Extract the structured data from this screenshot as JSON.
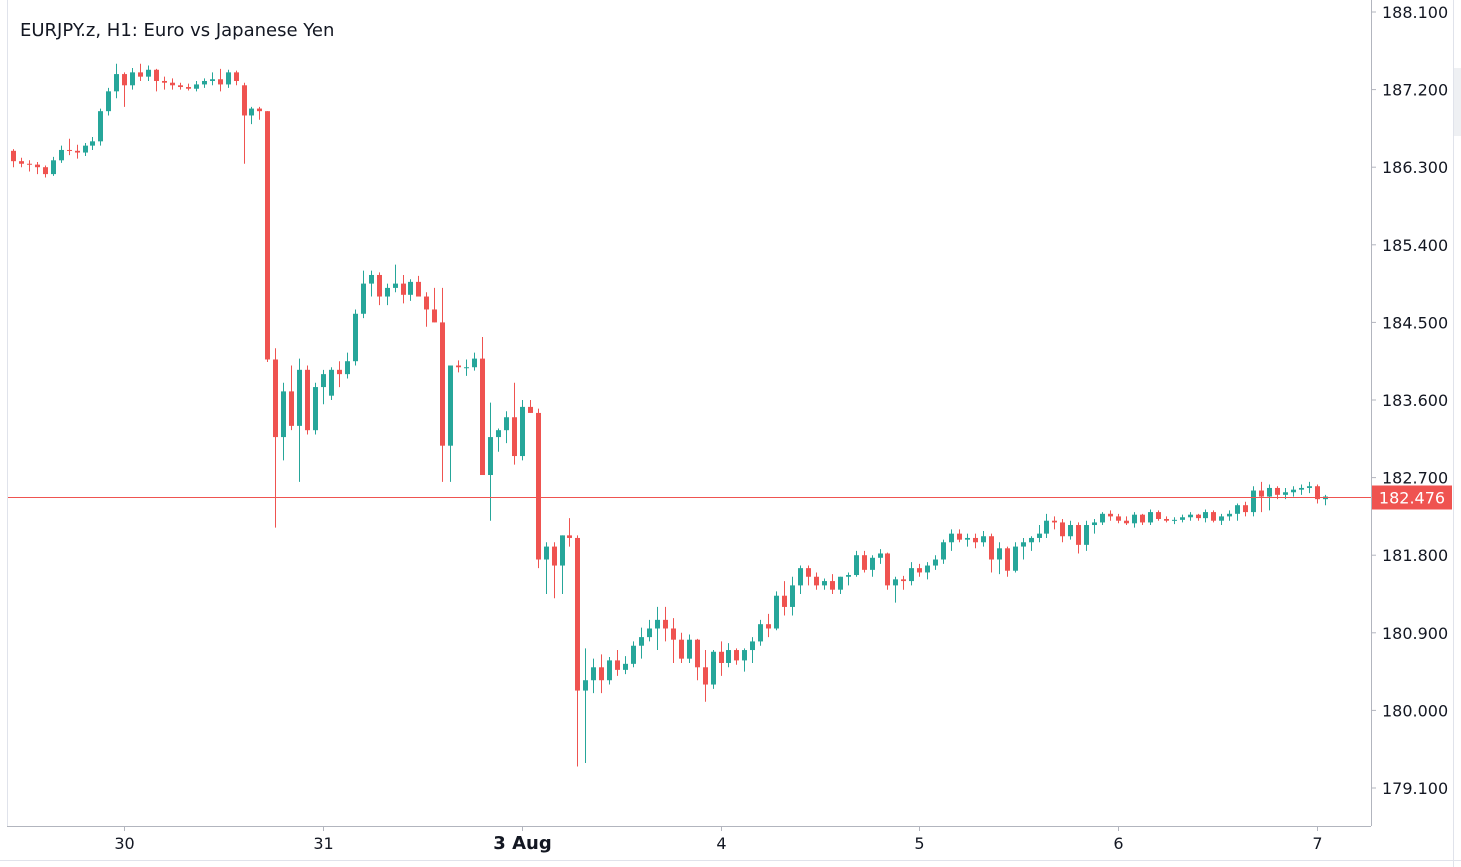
{
  "chart_data": {
    "type": "candlestick",
    "title": "EURJPY.z, H1: Euro vs Japanese Yen",
    "symbol": "EURJPY.z",
    "timeframe": "H1",
    "instrument": "Euro vs Japanese Yen",
    "ylim": [
      178.6,
      188.2
    ],
    "y_ticks": [
      "188.100",
      "187.200",
      "186.300",
      "185.400",
      "184.500",
      "183.600",
      "182.700",
      "181.800",
      "180.900",
      "180.000",
      "179.100"
    ],
    "x_ticks": [
      {
        "label": "30",
        "bar": 14,
        "bold": false
      },
      {
        "label": "31",
        "bar": 39,
        "bold": false
      },
      {
        "label": "3 Aug",
        "bar": 64,
        "bold": true
      },
      {
        "label": "4",
        "bar": 89,
        "bold": false
      },
      {
        "label": "5",
        "bar": 114,
        "bold": false
      },
      {
        "label": "6",
        "bar": 139,
        "bold": false
      },
      {
        "label": "7",
        "bar": 164,
        "bold": false
      }
    ],
    "current_price": 182.476,
    "current_price_label": "182.476",
    "colors": {
      "up": "#26a69a",
      "down": "#ef5350",
      "price_line": "#ef5350",
      "grid_axis": "#b2b5be"
    },
    "candles": [
      [
        186.49,
        186.51,
        186.3,
        186.37
      ],
      [
        186.37,
        186.41,
        186.3,
        186.34
      ],
      [
        186.34,
        186.38,
        186.25,
        186.33
      ],
      [
        186.33,
        186.36,
        186.22,
        186.3
      ],
      [
        186.3,
        186.32,
        186.18,
        186.22
      ],
      [
        186.22,
        186.42,
        186.2,
        186.38
      ],
      [
        186.38,
        186.55,
        186.35,
        186.5
      ],
      [
        186.5,
        186.63,
        186.44,
        186.49
      ],
      [
        186.49,
        186.56,
        186.4,
        186.47
      ],
      [
        186.47,
        186.58,
        186.43,
        186.55
      ],
      [
        186.55,
        186.65,
        186.5,
        186.6
      ],
      [
        186.6,
        186.98,
        186.55,
        186.95
      ],
      [
        186.95,
        187.22,
        186.9,
        187.18
      ],
      [
        187.18,
        187.5,
        187.1,
        187.38
      ],
      [
        187.38,
        187.4,
        187.0,
        187.25
      ],
      [
        187.25,
        187.45,
        187.2,
        187.4
      ],
      [
        187.4,
        187.5,
        187.3,
        187.35
      ],
      [
        187.35,
        187.48,
        187.3,
        187.43
      ],
      [
        187.43,
        187.44,
        187.18,
        187.3
      ],
      [
        187.3,
        187.35,
        187.2,
        187.28
      ],
      [
        187.28,
        187.33,
        187.2,
        187.25
      ],
      [
        187.25,
        187.28,
        187.2,
        187.23
      ],
      [
        187.23,
        187.27,
        187.19,
        187.21
      ],
      [
        187.21,
        187.3,
        187.18,
        187.26
      ],
      [
        187.26,
        187.33,
        187.22,
        187.3
      ],
      [
        187.3,
        187.4,
        187.25,
        187.32
      ],
      [
        187.32,
        187.44,
        187.18,
        187.26
      ],
      [
        187.26,
        187.43,
        187.22,
        187.4
      ],
      [
        187.4,
        187.42,
        187.25,
        187.3
      ],
      [
        187.25,
        187.28,
        186.34,
        186.9
      ],
      [
        186.9,
        187.0,
        186.8,
        186.98
      ],
      [
        186.98,
        187.0,
        186.85,
        186.95
      ],
      [
        186.95,
        186.95,
        184.04,
        184.07
      ],
      [
        184.07,
        184.2,
        182.12,
        183.17
      ],
      [
        183.17,
        183.8,
        182.9,
        183.7
      ],
      [
        183.7,
        184.0,
        183.25,
        183.3
      ],
      [
        183.3,
        184.08,
        182.65,
        183.95
      ],
      [
        183.95,
        184.0,
        183.2,
        183.25
      ],
      [
        183.25,
        183.8,
        183.2,
        183.75
      ],
      [
        183.75,
        183.95,
        183.55,
        183.9
      ],
      [
        183.65,
        183.98,
        183.6,
        183.95
      ],
      [
        183.95,
        184.05,
        183.75,
        183.9
      ],
      [
        183.9,
        184.15,
        183.85,
        184.05
      ],
      [
        184.05,
        184.65,
        184.0,
        184.6
      ],
      [
        184.6,
        185.1,
        184.55,
        184.95
      ],
      [
        184.95,
        185.1,
        184.8,
        185.05
      ],
      [
        185.05,
        185.08,
        184.7,
        184.8
      ],
      [
        184.8,
        184.95,
        184.7,
        184.9
      ],
      [
        184.9,
        185.17,
        184.85,
        184.95
      ],
      [
        184.95,
        185.05,
        184.72,
        184.82
      ],
      [
        184.82,
        185.0,
        184.75,
        184.97
      ],
      [
        184.97,
        185.04,
        184.8,
        184.8
      ],
      [
        184.8,
        184.85,
        184.45,
        184.65
      ],
      [
        184.65,
        184.9,
        184.5,
        184.5
      ],
      [
        184.5,
        184.9,
        182.65,
        183.07
      ],
      [
        183.07,
        184.0,
        182.65,
        184.0
      ],
      [
        184.0,
        184.06,
        183.92,
        183.98
      ],
      [
        183.98,
        184.07,
        183.88,
        183.98
      ],
      [
        183.98,
        184.15,
        183.94,
        184.08
      ],
      [
        184.08,
        184.33,
        182.73,
        182.73
      ],
      [
        182.73,
        183.57,
        182.2,
        183.17
      ],
      [
        183.17,
        183.27,
        183.0,
        183.25
      ],
      [
        183.25,
        183.47,
        183.1,
        183.4
      ],
      [
        183.4,
        183.8,
        182.85,
        182.95
      ],
      [
        182.95,
        183.6,
        182.9,
        183.52
      ],
      [
        183.52,
        183.6,
        183.45,
        183.45
      ],
      [
        183.45,
        183.5,
        181.65,
        181.75
      ],
      [
        181.75,
        181.95,
        181.35,
        181.9
      ],
      [
        181.9,
        181.95,
        181.3,
        181.68
      ],
      [
        181.68,
        182.03,
        181.35,
        182.03
      ],
      [
        182.03,
        182.23,
        181.9,
        182.0
      ],
      [
        182.0,
        182.03,
        179.35,
        180.23
      ],
      [
        180.23,
        180.72,
        179.39,
        180.35
      ],
      [
        180.35,
        180.6,
        180.2,
        180.5
      ],
      [
        180.5,
        180.65,
        180.2,
        180.35
      ],
      [
        180.35,
        180.62,
        180.3,
        180.58
      ],
      [
        180.58,
        180.7,
        180.4,
        180.47
      ],
      [
        180.47,
        180.63,
        180.42,
        180.54
      ],
      [
        180.54,
        180.8,
        180.5,
        180.75
      ],
      [
        180.75,
        180.96,
        180.6,
        180.85
      ],
      [
        180.85,
        181.05,
        180.8,
        180.95
      ],
      [
        180.95,
        181.2,
        180.7,
        181.05
      ],
      [
        181.05,
        181.2,
        180.8,
        180.95
      ],
      [
        180.95,
        181.07,
        180.55,
        180.82
      ],
      [
        180.82,
        180.9,
        180.55,
        180.6
      ],
      [
        180.6,
        180.88,
        180.55,
        180.82
      ],
      [
        180.82,
        180.83,
        180.35,
        180.5
      ],
      [
        180.5,
        180.7,
        180.1,
        180.3
      ],
      [
        180.3,
        180.7,
        180.25,
        180.68
      ],
      [
        180.68,
        180.8,
        180.4,
        180.55
      ],
      [
        180.55,
        180.78,
        180.5,
        180.7
      ],
      [
        180.7,
        180.72,
        180.53,
        180.58
      ],
      [
        180.58,
        180.72,
        180.45,
        180.7
      ],
      [
        180.7,
        180.85,
        180.55,
        180.8
      ],
      [
        180.8,
        181.05,
        180.75,
        181.0
      ],
      [
        181.0,
        181.12,
        180.85,
        180.95
      ],
      [
        180.95,
        181.38,
        180.93,
        181.33
      ],
      [
        181.33,
        181.5,
        181.1,
        181.2
      ],
      [
        181.2,
        181.55,
        181.1,
        181.45
      ],
      [
        181.45,
        181.68,
        181.35,
        181.65
      ],
      [
        181.65,
        181.68,
        181.45,
        181.55
      ],
      [
        181.55,
        181.6,
        181.4,
        181.45
      ],
      [
        181.45,
        181.53,
        181.4,
        181.5
      ],
      [
        181.5,
        181.58,
        181.35,
        181.4
      ],
      [
        181.4,
        181.55,
        181.35,
        181.55
      ],
      [
        181.55,
        181.6,
        181.45,
        181.57
      ],
      [
        181.57,
        181.85,
        181.55,
        181.8
      ],
      [
        181.8,
        181.85,
        181.6,
        181.63
      ],
      [
        181.63,
        181.8,
        181.55,
        181.77
      ],
      [
        181.77,
        181.87,
        181.7,
        181.82
      ],
      [
        181.82,
        181.83,
        181.4,
        181.45
      ],
      [
        181.45,
        181.55,
        181.25,
        181.52
      ],
      [
        181.52,
        181.56,
        181.4,
        181.5
      ],
      [
        181.5,
        181.72,
        181.45,
        181.65
      ],
      [
        181.65,
        181.7,
        181.55,
        181.6
      ],
      [
        181.6,
        181.72,
        181.52,
        181.68
      ],
      [
        181.68,
        181.8,
        181.63,
        181.75
      ],
      [
        181.75,
        181.98,
        181.7,
        181.95
      ],
      [
        181.95,
        182.1,
        181.85,
        182.05
      ],
      [
        182.05,
        182.1,
        181.95,
        181.98
      ],
      [
        181.98,
        182.05,
        181.9,
        182.0
      ],
      [
        182.0,
        182.05,
        181.88,
        181.95
      ],
      [
        181.95,
        182.08,
        181.9,
        182.02
      ],
      [
        182.02,
        182.05,
        181.6,
        181.75
      ],
      [
        181.75,
        181.95,
        181.58,
        181.88
      ],
      [
        181.88,
        181.9,
        181.55,
        181.62
      ],
      [
        181.62,
        181.95,
        181.6,
        181.9
      ],
      [
        181.9,
        182.0,
        181.75,
        181.95
      ],
      [
        181.95,
        182.02,
        181.85,
        182.0
      ],
      [
        182.0,
        182.15,
        181.95,
        182.05
      ],
      [
        182.05,
        182.28,
        182.0,
        182.2
      ],
      [
        182.2,
        182.25,
        182.1,
        182.18
      ],
      [
        182.18,
        182.22,
        181.95,
        182.02
      ],
      [
        182.02,
        182.2,
        181.98,
        182.15
      ],
      [
        182.15,
        182.18,
        181.82,
        181.92
      ],
      [
        181.92,
        182.2,
        181.85,
        182.15
      ],
      [
        182.15,
        182.22,
        182.05,
        182.18
      ],
      [
        182.18,
        182.3,
        182.15,
        182.28
      ],
      [
        182.28,
        182.32,
        182.2,
        182.25
      ],
      [
        182.25,
        182.28,
        182.17,
        182.2
      ],
      [
        182.2,
        182.25,
        182.15,
        182.17
      ],
      [
        182.17,
        182.3,
        182.12,
        182.27
      ],
      [
        182.27,
        182.28,
        182.15,
        182.18
      ],
      [
        182.18,
        182.33,
        182.15,
        182.3
      ],
      [
        182.3,
        182.32,
        182.2,
        182.22
      ],
      [
        182.22,
        182.25,
        182.18,
        182.2
      ],
      [
        182.2,
        182.24,
        182.16,
        182.21
      ],
      [
        182.21,
        182.27,
        182.18,
        182.24
      ],
      [
        182.24,
        182.3,
        182.2,
        182.27
      ],
      [
        182.27,
        182.28,
        182.2,
        182.23
      ],
      [
        182.23,
        182.33,
        182.18,
        182.3
      ],
      [
        182.3,
        182.32,
        182.18,
        182.2
      ],
      [
        182.2,
        182.28,
        182.15,
        182.25
      ],
      [
        182.25,
        182.32,
        182.2,
        182.28
      ],
      [
        182.28,
        182.4,
        182.2,
        182.38
      ],
      [
        182.38,
        182.42,
        182.25,
        182.3
      ],
      [
        182.3,
        182.6,
        182.25,
        182.55
      ],
      [
        182.55,
        182.65,
        182.3,
        182.48
      ],
      [
        182.48,
        182.62,
        182.32,
        182.58
      ],
      [
        182.58,
        182.6,
        182.45,
        182.5
      ],
      [
        182.5,
        182.58,
        182.45,
        182.53
      ],
      [
        182.53,
        182.6,
        182.48,
        182.56
      ],
      [
        182.56,
        182.62,
        182.5,
        182.58
      ],
      [
        182.58,
        182.65,
        182.52,
        182.6
      ],
      [
        182.6,
        182.62,
        182.4,
        182.45
      ],
      [
        182.45,
        182.5,
        182.38,
        182.48
      ]
    ]
  }
}
